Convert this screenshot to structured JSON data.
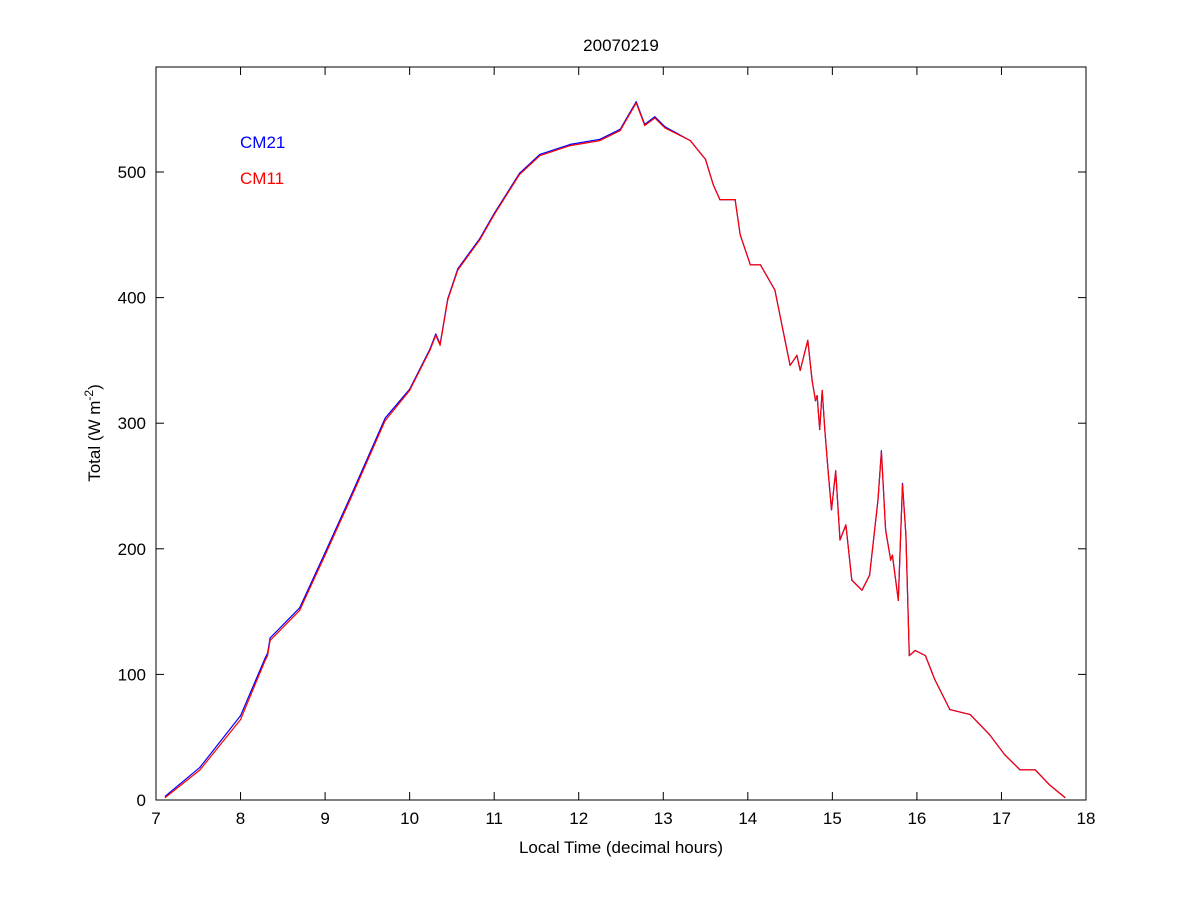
{
  "chart_data": {
    "type": "line",
    "title": "20070219",
    "xlabel": "Local Time (decimal hours)",
    "ylabel": "Total (W m-2)",
    "ylabel_parts": {
      "main": "Total (W m",
      "sup": "-2",
      "close": ")"
    },
    "xlim": [
      7,
      18
    ],
    "ylim": [
      0,
      580
    ],
    "xticks": [
      7,
      8,
      9,
      10,
      11,
      12,
      13,
      14,
      15,
      16,
      17,
      18
    ],
    "yticks": [
      0,
      100,
      200,
      300,
      400,
      500
    ],
    "grid": false,
    "legend_placement": "top-left",
    "x": [
      7.11,
      7.52,
      8.0,
      8.29,
      8.32,
      8.35,
      8.7,
      9.0,
      9.35,
      9.71,
      10.0,
      10.24,
      10.31,
      10.36,
      10.45,
      10.57,
      10.83,
      11.0,
      11.3,
      11.54,
      11.9,
      12.25,
      12.49,
      12.68,
      12.78,
      12.9,
      13.02,
      13.32,
      13.5,
      13.59,
      13.67,
      13.85,
      13.91,
      14.03,
      14.15,
      14.32,
      14.44,
      14.5,
      14.58,
      14.62,
      14.71,
      14.76,
      14.8,
      14.82,
      14.85,
      14.88,
      14.91,
      14.95,
      14.99,
      15.04,
      15.09,
      15.16,
      15.23,
      15.35,
      15.44,
      15.54,
      15.58,
      15.63,
      15.69,
      15.71,
      15.78,
      15.83,
      15.87,
      15.91,
      15.98,
      16.1,
      16.21,
      16.39,
      16.63,
      16.86,
      17.04,
      17.22,
      17.4,
      17.57,
      17.75
    ],
    "series": [
      {
        "name": "CM21",
        "color": "#0000ff",
        "values": [
          3,
          26,
          67,
          113,
          117,
          129,
          153,
          197,
          249,
          304,
          327,
          359,
          371,
          363,
          399,
          423,
          447,
          467,
          499,
          514,
          522,
          526,
          534,
          556,
          538,
          544,
          536,
          525,
          510,
          490,
          478,
          478,
          450,
          426,
          426,
          406,
          366,
          346,
          354,
          342,
          366,
          334,
          318,
          322,
          295,
          326,
          295,
          262,
          231,
          262,
          207,
          219,
          175,
          167,
          179,
          239,
          278,
          215,
          191,
          195,
          159,
          252,
          211,
          115,
          119,
          115,
          96,
          72,
          68,
          52,
          36,
          24,
          24,
          12,
          2
        ]
      },
      {
        "name": "CM11",
        "color": "#ff0000",
        "values": [
          2,
          24,
          64,
          111,
          115,
          127,
          151,
          195,
          247,
          302,
          326,
          358,
          370,
          362,
          398,
          422,
          446,
          466,
          498,
          513,
          521,
          525,
          533,
          555,
          537,
          543,
          535,
          525,
          510,
          490,
          478,
          478,
          450,
          426,
          426,
          406,
          366,
          346,
          354,
          342,
          366,
          334,
          318,
          322,
          295,
          326,
          295,
          262,
          231,
          262,
          207,
          219,
          175,
          167,
          179,
          239,
          277,
          215,
          191,
          195,
          159,
          251,
          211,
          115,
          119,
          115,
          96,
          72,
          68,
          52,
          36,
          24,
          24,
          12,
          2
        ]
      }
    ]
  }
}
